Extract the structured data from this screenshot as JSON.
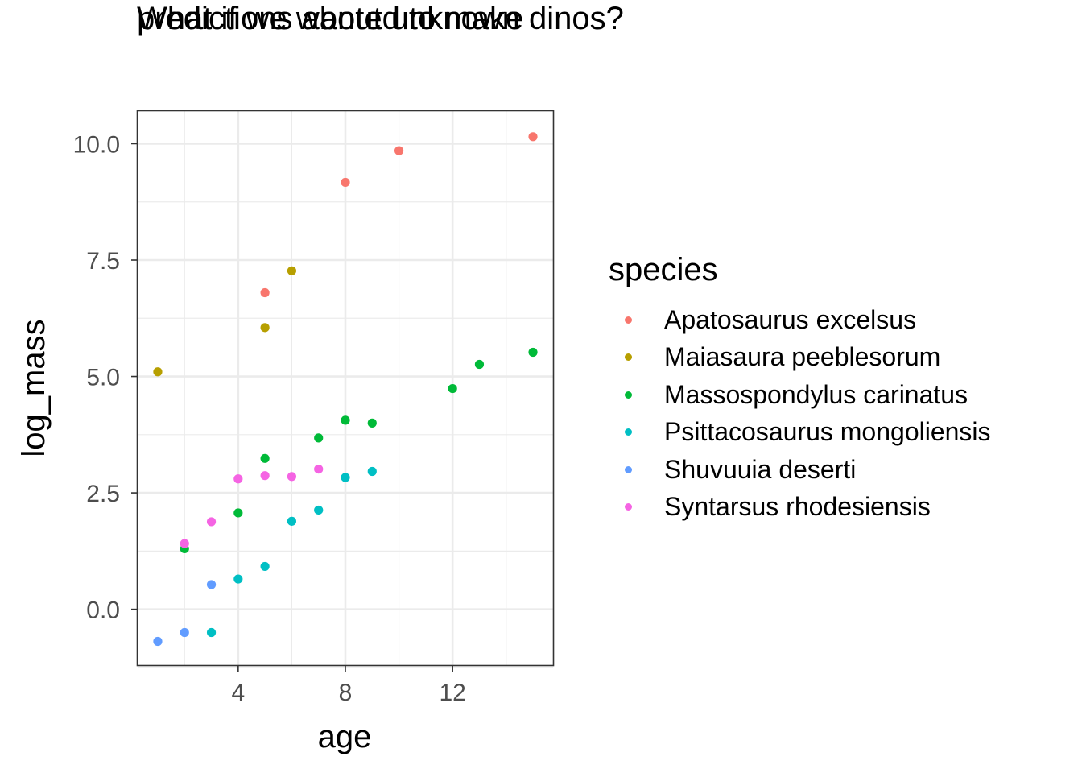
{
  "chart_data": {
    "type": "scatter",
    "title": [
      "What if we wanted to make",
      "predictions about unknown dinos?"
    ],
    "xlabel": "age",
    "ylabel": "log_mass",
    "xlim": [
      0.25,
      15.75
    ],
    "ylim": [
      -1.2,
      10.7
    ],
    "x_ticks": [
      4,
      8,
      12
    ],
    "x_minor_ticks": [
      2,
      6,
      10,
      14
    ],
    "y_ticks": [
      0.0,
      2.5,
      5.0,
      7.5,
      10.0
    ],
    "y_tick_labels": [
      "0.0",
      "2.5",
      "5.0",
      "7.5",
      "10.0"
    ],
    "y_minor_ticks": [
      -1.25,
      1.25,
      3.75,
      6.25,
      8.75
    ],
    "grid": true,
    "legend_title": "species",
    "legend_position": "right",
    "series": [
      {
        "name": "Apatosaurus excelsus",
        "color": "#F8766D",
        "points": [
          [
            5,
            6.8
          ],
          [
            8,
            9.17
          ],
          [
            10,
            9.85
          ],
          [
            15,
            10.15
          ]
        ]
      },
      {
        "name": "Maiasaura peeblesorum",
        "color": "#B79F00",
        "points": [
          [
            1,
            5.1
          ],
          [
            5,
            6.05
          ],
          [
            6,
            7.27
          ]
        ]
      },
      {
        "name": "Massospondylus carinatus",
        "color": "#00BA38",
        "points": [
          [
            2,
            1.3
          ],
          [
            4,
            2.07
          ],
          [
            5,
            3.24
          ],
          [
            7,
            3.68
          ],
          [
            8,
            4.06
          ],
          [
            9,
            4.0
          ],
          [
            12,
            4.74
          ],
          [
            13,
            5.26
          ],
          [
            15,
            5.52
          ]
        ]
      },
      {
        "name": "Psittacosaurus mongoliensis",
        "color": "#00BFC4",
        "points": [
          [
            3,
            -0.5
          ],
          [
            4,
            0.65
          ],
          [
            5,
            0.92
          ],
          [
            6,
            1.89
          ],
          [
            7,
            2.13
          ],
          [
            8,
            2.83
          ],
          [
            9,
            2.96
          ]
        ]
      },
      {
        "name": "Shuvuuia deserti",
        "color": "#619CFF",
        "points": [
          [
            1,
            -0.69
          ],
          [
            2,
            -0.5
          ],
          [
            3,
            0.53
          ]
        ]
      },
      {
        "name": "Syntarsus rhodesiensis",
        "color": "#F564E3",
        "points": [
          [
            2,
            1.41
          ],
          [
            3,
            1.88
          ],
          [
            4,
            2.8
          ],
          [
            5,
            2.87
          ],
          [
            6,
            2.85
          ],
          [
            7,
            3.01
          ]
        ]
      }
    ]
  }
}
